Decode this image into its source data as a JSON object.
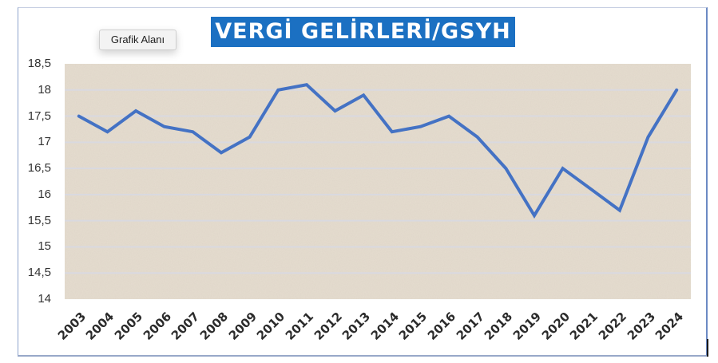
{
  "chart": {
    "title": "VERGİ GELİRLERİ/GSYH",
    "tooltip": "Grafik Alanı"
  },
  "colors": {
    "title_bg": "#1b70c2",
    "line": "#4472c4",
    "plot_bg": "#e6ddd0",
    "gridline": "#d9d9e0"
  },
  "chart_data": {
    "type": "line",
    "title": "VERGİ GELİRLERİ/GSYH",
    "xlabel": "",
    "ylabel": "",
    "categories": [
      "2003",
      "2004",
      "2005",
      "2006",
      "2007",
      "2008",
      "2009",
      "2010",
      "2011",
      "2012",
      "2013",
      "2014",
      "2015",
      "2016",
      "2017",
      "2018",
      "2019",
      "2020",
      "2021",
      "2022",
      "2023",
      "2024"
    ],
    "series": [
      {
        "name": "Vergi Gelirleri/GSYH",
        "values": [
          17.5,
          17.2,
          17.6,
          17.3,
          17.2,
          16.8,
          17.1,
          18.0,
          18.1,
          17.6,
          17.9,
          17.2,
          17.3,
          17.5,
          17.1,
          16.5,
          15.6,
          16.5,
          16.1,
          15.7,
          17.1,
          18.0
        ]
      }
    ],
    "ylim": [
      14,
      18.5
    ],
    "yticks": [
      "18,5",
      "18",
      "17,5",
      "17",
      "16,5",
      "16",
      "15,5",
      "15",
      "14,5",
      "14"
    ],
    "grid": true,
    "legend": "none"
  }
}
